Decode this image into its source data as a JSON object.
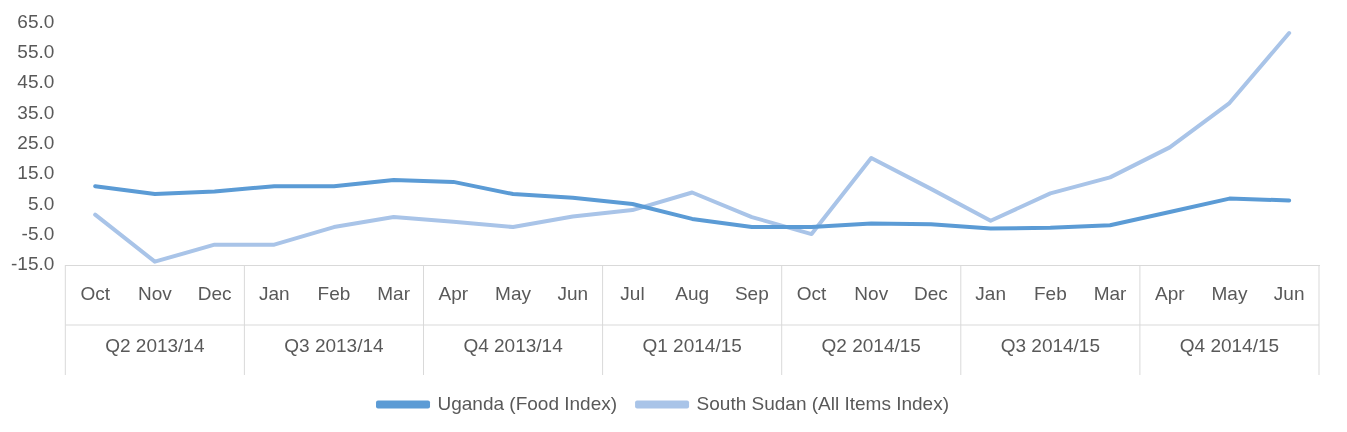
{
  "chart_data": {
    "type": "line",
    "categories": [
      "Oct",
      "Nov",
      "Dec",
      "Jan",
      "Feb",
      "Mar",
      "Apr",
      "May",
      "Jun",
      "Jul",
      "Aug",
      "Sep",
      "Oct",
      "Nov",
      "Dec",
      "Jan",
      "Feb",
      "Mar",
      "Apr",
      "May",
      "Jun"
    ],
    "annotations": [
      "Q2 2013/14",
      "Q3 2013/14",
      "Q4 2013/14",
      "Q1 2014/15",
      "Q2 2014/15",
      "Q3 2014/15",
      "Q4 2014/15"
    ],
    "series": [
      {
        "name": "Uganda (Food Index)",
        "color": "#5b9bd5",
        "values": [
          11.0,
          8.4,
          9.2,
          11.0,
          11.0,
          13.0,
          12.4,
          8.4,
          7.2,
          5.1,
          0.2,
          -2.5,
          -2.5,
          -1.3,
          -1.6,
          -3.0,
          -2.7,
          -1.9,
          2.5,
          6.9,
          6.3
        ]
      },
      {
        "name": "South Sudan (All Items Index)",
        "color": "#a9c4e8",
        "values": [
          1.6,
          -13.9,
          -8.3,
          -8.3,
          -2.5,
          0.8,
          -0.7,
          -2.5,
          1.0,
          3.1,
          8.9,
          0.8,
          -4.8,
          20.3,
          10.1,
          -0.4,
          8.6,
          13.9,
          23.8,
          38.4,
          61.5
        ]
      }
    ],
    "ylim": [
      -15,
      65
    ],
    "yticks": [
      {
        "value": -15,
        "label": "-15.0"
      },
      {
        "value": -5,
        "label": "-5.0"
      },
      {
        "value": 5,
        "label": "5.0"
      },
      {
        "value": 15,
        "label": "15.0"
      },
      {
        "value": 25,
        "label": "25.0"
      },
      {
        "value": 35,
        "label": "35.0"
      },
      {
        "value": 45,
        "label": "45.0"
      },
      {
        "value": 55,
        "label": "55.0"
      },
      {
        "value": 65,
        "label": "65.0"
      }
    ],
    "grid": false,
    "legend": "bottom",
    "marker": "none",
    "line_style": "solid"
  }
}
